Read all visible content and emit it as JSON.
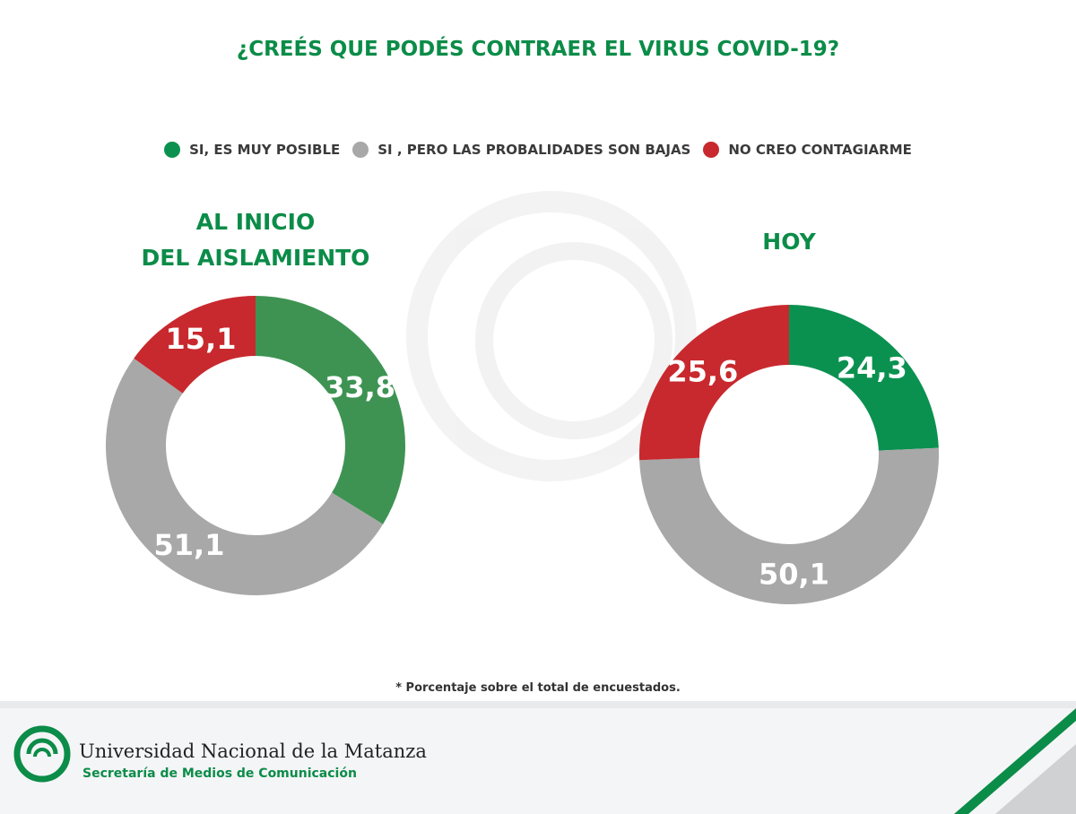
{
  "chart_data": [
    {
      "type": "pie",
      "title": "AL INICIO DEL AISLAMIENTO",
      "title_lines": [
        "AL INICIO",
        "DEL AISLAMIENTO"
      ],
      "labels": [
        "SI, ES MUY POSIBLE",
        "SI , PERO LAS PROBALIDADES SON BAJAS",
        "NO CREO CONTAGIARME"
      ],
      "values": [
        33.8,
        51.1,
        15.1
      ],
      "data_labels": [
        "33,8",
        "51,1",
        "15,1"
      ],
      "colors": [
        "#3e9353",
        "#a8a8a8",
        "#c8292e"
      ]
    },
    {
      "type": "pie",
      "title": "HOY",
      "title_lines": [
        "HOY"
      ],
      "labels": [
        "SI, ES MUY POSIBLE",
        "SI , PERO LAS PROBALIDADES SON BAJAS",
        "NO CREO CONTAGIARME"
      ],
      "values": [
        24.3,
        50.1,
        25.6
      ],
      "data_labels": [
        "24,3",
        "50,1",
        "25,6"
      ],
      "colors": [
        "#0a9150",
        "#a8a8a8",
        "#c8292e"
      ]
    }
  ],
  "title": "¿CREÉS QUE PODÉS CONTRAER EL VIRUS COVID-19?",
  "legend": [
    {
      "label": "SI, ES MUY POSIBLE",
      "color": "#0a9150"
    },
    {
      "label": "SI , PERO LAS PROBALIDADES SON BAJAS",
      "color": "#a8a8a8"
    },
    {
      "label": "NO CREO CONTAGIARME",
      "color": "#c8292e"
    }
  ],
  "note": "* Porcentaje sobre el total de encuestados.",
  "footer": {
    "university": "Universidad Nacional de la Matanza",
    "secretary": "Secretaría de Medios de Comunicación"
  }
}
